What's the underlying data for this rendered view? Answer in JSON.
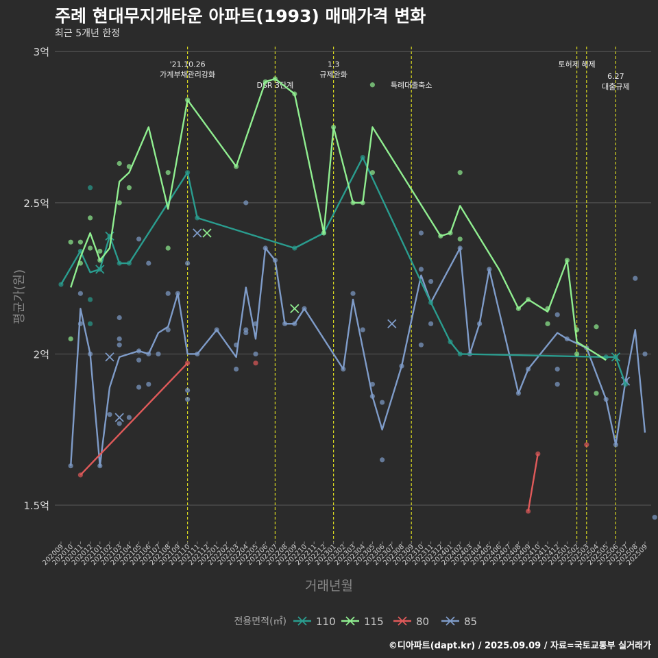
{
  "header": {
    "title": "주례 현대무지개타운 아파트(1993) 매매가격 변화",
    "subtitle": "최근 5개년 한정"
  },
  "footer": "©디아파트(dapt.kr) / 2025.09.09 / 자료=국토교통부 실거래가",
  "chart_data": {
    "type": "line",
    "xlabel": "거래년월",
    "ylabel": "평균가(원)",
    "ylim": [
      1.38,
      3.03
    ],
    "y_ticks": [
      {
        "v": 1.5,
        "label": "1.5억"
      },
      {
        "v": 2.0,
        "label": "2억"
      },
      {
        "v": 2.5,
        "label": "2.5억"
      },
      {
        "v": 3.0,
        "label": "3억"
      }
    ],
    "x_labels": [
      "202009",
      "202010",
      "202011",
      "202012",
      "202101",
      "202102",
      "202103",
      "202104",
      "202105",
      "202106",
      "202107",
      "202108",
      "202109",
      "202110",
      "202111",
      "202112",
      "202201",
      "202202",
      "202203",
      "202204",
      "202205",
      "202206",
      "202207",
      "202208",
      "202209",
      "202210",
      "202211",
      "202212",
      "202301",
      "202302",
      "202303",
      "202304",
      "202305",
      "202306",
      "202307",
      "202308",
      "202309",
      "202310",
      "202311",
      "202312",
      "202401",
      "202402",
      "202403",
      "202404",
      "202405",
      "202406",
      "202407",
      "202408",
      "202409",
      "202410",
      "202411",
      "202412",
      "202501",
      "202502",
      "202503",
      "202504",
      "202505",
      "202506",
      "202507",
      "202508",
      "202509"
    ],
    "legend": {
      "title": "전용면적(㎡)",
      "position": "bottom"
    },
    "series": [
      {
        "name": "110",
        "color": "#2a9d8f",
        "line": [
          [
            0,
            2.23
          ],
          [
            2,
            2.34
          ],
          [
            3,
            2.27
          ],
          [
            4,
            2.28
          ],
          [
            5,
            2.39
          ],
          [
            6,
            2.3
          ],
          [
            7,
            2.3
          ],
          [
            13,
            2.6
          ],
          [
            14,
            2.45
          ],
          [
            24,
            2.35
          ],
          [
            27,
            2.4
          ],
          [
            31,
            2.65
          ],
          [
            38,
            2.17
          ],
          [
            40,
            2.04
          ],
          [
            41,
            2.0
          ],
          [
            56,
            1.99
          ],
          [
            57,
            1.99
          ],
          [
            58,
            1.9
          ]
        ],
        "points": [
          [
            0,
            2.23
          ],
          [
            2,
            2.34
          ],
          [
            3,
            2.55
          ],
          [
            3,
            2.18
          ],
          [
            3,
            2.1
          ],
          [
            4,
            2.28
          ],
          [
            5,
            2.39
          ],
          [
            6,
            2.3
          ],
          [
            7,
            2.3
          ],
          [
            13,
            2.6
          ],
          [
            14,
            2.45
          ],
          [
            24,
            2.35
          ],
          [
            27,
            2.4
          ],
          [
            31,
            2.65
          ],
          [
            38,
            2.17
          ],
          [
            40,
            2.04
          ],
          [
            41,
            2.0
          ],
          [
            56,
            1.99
          ],
          [
            57,
            1.99
          ],
          [
            58,
            1.9
          ]
        ],
        "crosses": [
          [
            4,
            2.28
          ],
          [
            5,
            2.39
          ],
          [
            57,
            1.99
          ]
        ]
      },
      {
        "name": "115",
        "color": "#90ee90",
        "line": [
          [
            1,
            2.22
          ],
          [
            2,
            2.32
          ],
          [
            3,
            2.4
          ],
          [
            4,
            2.31
          ],
          [
            5,
            2.35
          ],
          [
            6,
            2.57
          ],
          [
            7,
            2.6
          ],
          [
            9,
            2.75
          ],
          [
            11,
            2.48
          ],
          [
            13,
            2.84
          ],
          [
            18,
            2.62
          ],
          [
            21,
            2.9
          ],
          [
            22,
            2.91
          ],
          [
            24,
            2.86
          ],
          [
            27,
            2.4
          ],
          [
            28,
            2.75
          ],
          [
            30,
            2.5
          ],
          [
            31,
            2.5
          ],
          [
            32,
            2.75
          ],
          [
            39,
            2.39
          ],
          [
            40,
            2.4
          ],
          [
            41,
            2.49
          ],
          [
            45,
            2.28
          ],
          [
            47,
            2.15
          ],
          [
            48,
            2.18
          ],
          [
            50,
            2.14
          ],
          [
            52,
            2.31
          ],
          [
            53,
            2.04
          ],
          [
            55,
            2.0
          ],
          [
            56,
            1.98
          ]
        ],
        "points": [
          [
            1,
            2.37
          ],
          [
            1,
            2.05
          ],
          [
            2,
            2.3
          ],
          [
            2,
            2.37
          ],
          [
            3,
            2.45
          ],
          [
            3,
            2.35
          ],
          [
            4,
            2.34
          ],
          [
            4,
            2.31
          ],
          [
            6,
            2.63
          ],
          [
            6,
            2.5
          ],
          [
            7,
            2.62
          ],
          [
            7,
            2.55
          ],
          [
            11,
            2.6
          ],
          [
            11,
            2.35
          ],
          [
            13,
            2.84
          ],
          [
            18,
            2.62
          ],
          [
            21,
            2.9
          ],
          [
            22,
            2.91
          ],
          [
            24,
            2.86
          ],
          [
            27,
            2.4
          ],
          [
            28,
            2.75
          ],
          [
            30,
            2.5
          ],
          [
            31,
            2.5
          ],
          [
            32,
            2.89
          ],
          [
            32,
            2.6
          ],
          [
            39,
            2.39
          ],
          [
            40,
            2.4
          ],
          [
            41,
            2.6
          ],
          [
            41,
            2.38
          ],
          [
            47,
            2.15
          ],
          [
            48,
            2.18
          ],
          [
            50,
            2.15
          ],
          [
            50,
            2.1
          ],
          [
            52,
            2.31
          ],
          [
            53,
            2.08
          ],
          [
            53,
            2.0
          ],
          [
            55,
            2.09
          ],
          [
            55,
            1.87
          ]
        ],
        "crosses": [
          [
            15,
            2.4
          ],
          [
            24,
            2.15
          ]
        ]
      },
      {
        "name": "80",
        "color": "#e05a5a",
        "line": [
          [
            2,
            1.6
          ],
          [
            13,
            1.97
          ]
        ],
        "points": [
          [
            2,
            1.6
          ],
          [
            13,
            1.97
          ],
          [
            20,
            1.97
          ],
          [
            48,
            1.48
          ],
          [
            49,
            1.67
          ],
          [
            54,
            1.7
          ]
        ],
        "extra_lines": [
          [
            [
              48,
              1.48
            ],
            [
              49,
              1.67
            ]
          ]
        ],
        "crosses": []
      },
      {
        "name": "85",
        "color": "#7f9cc9",
        "line": [
          [
            1,
            1.63
          ],
          [
            2,
            2.15
          ],
          [
            3,
            2.0
          ],
          [
            4,
            1.63
          ],
          [
            5,
            1.89
          ],
          [
            6,
            1.99
          ],
          [
            7,
            2.0
          ],
          [
            8,
            2.01
          ],
          [
            9,
            2.0
          ],
          [
            10,
            2.07
          ],
          [
            11,
            2.09
          ],
          [
            12,
            2.2
          ],
          [
            13,
            2.0
          ],
          [
            14,
            2.0
          ],
          [
            16,
            2.08
          ],
          [
            18,
            1.99
          ],
          [
            19,
            2.22
          ],
          [
            20,
            2.05
          ],
          [
            21,
            2.35
          ],
          [
            22,
            2.31
          ],
          [
            23,
            2.1
          ],
          [
            24,
            2.1
          ],
          [
            25,
            2.15
          ],
          [
            29,
            1.95
          ],
          [
            30,
            2.18
          ],
          [
            32,
            1.86
          ],
          [
            33,
            1.75
          ],
          [
            35,
            1.96
          ],
          [
            37,
            2.26
          ],
          [
            38,
            2.17
          ],
          [
            41,
            2.35
          ],
          [
            42,
            2.0
          ],
          [
            43,
            2.1
          ],
          [
            44,
            2.28
          ],
          [
            47,
            1.87
          ],
          [
            48,
            1.95
          ],
          [
            51,
            2.07
          ],
          [
            52,
            2.05
          ],
          [
            54,
            2.02
          ],
          [
            56,
            1.85
          ],
          [
            57,
            1.7
          ],
          [
            58,
            1.91
          ],
          [
            59,
            2.08
          ],
          [
            60,
            1.74
          ]
        ],
        "points": [
          [
            1,
            1.63
          ],
          [
            2,
            2.2
          ],
          [
            2,
            2.1
          ],
          [
            3,
            2.0
          ],
          [
            4,
            1.63
          ],
          [
            5,
            1.8
          ],
          [
            6,
            2.12
          ],
          [
            6,
            2.05
          ],
          [
            6,
            2.03
          ],
          [
            6,
            1.77
          ],
          [
            7,
            1.79
          ],
          [
            8,
            2.38
          ],
          [
            8,
            2.01
          ],
          [
            8,
            1.98
          ],
          [
            8,
            1.89
          ],
          [
            9,
            2.0
          ],
          [
            9,
            2.3
          ],
          [
            9,
            1.9
          ],
          [
            10,
            2.0
          ],
          [
            11,
            2.2
          ],
          [
            11,
            2.08
          ],
          [
            12,
            2.2
          ],
          [
            13,
            2.3
          ],
          [
            13,
            1.88
          ],
          [
            13,
            1.85
          ],
          [
            14,
            2.0
          ],
          [
            16,
            2.08
          ],
          [
            18,
            1.95
          ],
          [
            18,
            2.03
          ],
          [
            19,
            2.5
          ],
          [
            19,
            2.07
          ],
          [
            19,
            2.08
          ],
          [
            20,
            2.0
          ],
          [
            20,
            2.1
          ],
          [
            21,
            2.35
          ],
          [
            22,
            2.31
          ],
          [
            23,
            2.1
          ],
          [
            24,
            2.1
          ],
          [
            25,
            2.15
          ],
          [
            29,
            1.95
          ],
          [
            30,
            2.2
          ],
          [
            31,
            2.08
          ],
          [
            32,
            1.9
          ],
          [
            32,
            1.86
          ],
          [
            33,
            1.84
          ],
          [
            33,
            1.65
          ],
          [
            35,
            1.96
          ],
          [
            37,
            2.4
          ],
          [
            37,
            2.28
          ],
          [
            37,
            2.03
          ],
          [
            38,
            2.24
          ],
          [
            38,
            2.1
          ],
          [
            41,
            2.35
          ],
          [
            42,
            2.0
          ],
          [
            43,
            2.1
          ],
          [
            44,
            2.28
          ],
          [
            47,
            1.87
          ],
          [
            48,
            1.95
          ],
          [
            51,
            1.95
          ],
          [
            51,
            1.9
          ],
          [
            51,
            2.13
          ],
          [
            52,
            2.05
          ],
          [
            54,
            2.02
          ],
          [
            56,
            1.85
          ],
          [
            57,
            1.7
          ],
          [
            58,
            1.91
          ],
          [
            59,
            2.25
          ],
          [
            60,
            2.0
          ],
          [
            61,
            1.46
          ]
        ],
        "crosses": [
          [
            5,
            1.99
          ],
          [
            6,
            1.79
          ],
          [
            14,
            2.4
          ],
          [
            34,
            2.1
          ],
          [
            58,
            1.91
          ]
        ]
      }
    ],
    "vlines": [
      {
        "x": 13,
        "label": "'21.10.26\n가계부채관리강화",
        "label_y": 2.95
      },
      {
        "x": 22,
        "label": "DSR 3단계",
        "label_y": 2.88
      },
      {
        "x": 28,
        "label": "1.3\n규제완화",
        "label_y": 2.95
      },
      {
        "x": 36,
        "label": "특례대출축소",
        "label_y": 2.88
      },
      {
        "x": 53,
        "label": "토허제 해제",
        "label_y": 2.95
      },
      {
        "x": 54,
        "label": "",
        "label_y": 2.95
      },
      {
        "x": 57,
        "label": "6.27\n대출규제",
        "label_y": 2.91
      }
    ]
  }
}
